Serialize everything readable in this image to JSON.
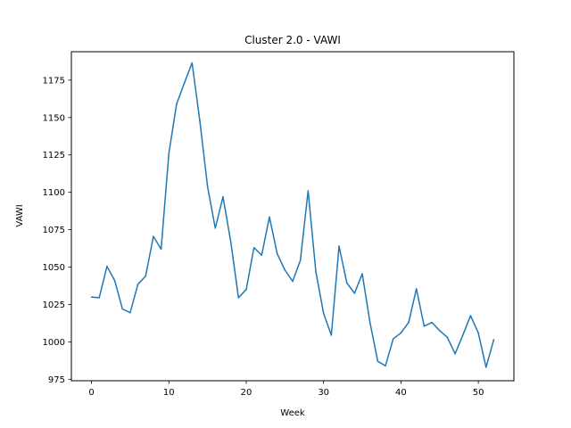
{
  "chart_data": {
    "type": "line",
    "title": "Cluster 2.0 - VAWI",
    "xlabel": "Week",
    "ylabel": "VAWI",
    "xlim": [
      -2.6,
      54.6
    ],
    "ylim": [
      974,
      1194
    ],
    "xticks": [
      0,
      10,
      20,
      30,
      40,
      50
    ],
    "yticks": [
      975,
      1000,
      1025,
      1050,
      1075,
      1100,
      1125,
      1150,
      1175
    ],
    "grid": false,
    "series": [
      {
        "color": "#1f77b4",
        "x": [
          0,
          1,
          2,
          3,
          4,
          5,
          6,
          7,
          8,
          9,
          10,
          11,
          12,
          13,
          14,
          15,
          16,
          17,
          18,
          19,
          20,
          21,
          22,
          23,
          24,
          25,
          26,
          27,
          28,
          29,
          30,
          31,
          32,
          33,
          34,
          35,
          36,
          37,
          38,
          39,
          40,
          41,
          42,
          43,
          44,
          45,
          46,
          47,
          48,
          49,
          50,
          51,
          52
        ],
        "y": [
          1030,
          1029.5,
          1050.5,
          1041,
          1022,
          1019.5,
          1038.5,
          1044,
          1070.5,
          1062,
          1126,
          1159,
          1173,
          1186.5,
          1148,
          1104,
          1076,
          1097,
          1067,
          1029.5,
          1035,
          1063,
          1058,
          1083.5,
          1059,
          1048,
          1040.5,
          1054.5,
          1101,
          1047,
          1019,
          1004.5,
          1064,
          1039.5,
          1032.5,
          1045.5,
          1013,
          987,
          984,
          1002,
          1006,
          1013,
          1035.5,
          1010.5,
          1013,
          1007.5,
          1003,
          992,
          1004.5,
          1017.5,
          1006,
          983,
          1001.5
        ]
      }
    ]
  }
}
